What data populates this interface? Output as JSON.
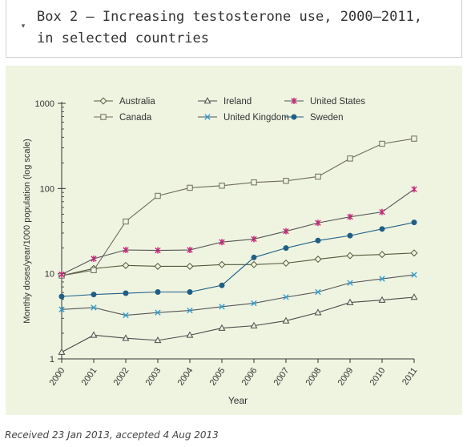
{
  "box": {
    "toggle_icon": "▾",
    "title": "Box 2 – Increasing testosterone use, 2000–2011, in selected countries"
  },
  "caption": "Received 23 Jan 2013, accepted 4 Aug 2013",
  "chart_data": {
    "type": "line",
    "xlabel": "Year",
    "ylabel": "Monthly doses/year/1000 population (log scale)",
    "y_scale": "log",
    "ylim": [
      1,
      1000
    ],
    "y_ticks": [
      1,
      10,
      100,
      1000
    ],
    "y_tick_labels": [
      "1",
      "10",
      "100",
      "1000"
    ],
    "categories": [
      "2000",
      "2001",
      "2002",
      "2003",
      "2004",
      "2005",
      "2006",
      "2007",
      "2008",
      "2009",
      "2010",
      "2011"
    ],
    "grid": false,
    "legend_position": "top",
    "colors": {
      "background": "#eff4e1",
      "australia": "#4f5a38",
      "canada": "#6e6a5e",
      "ireland": "#4a4a4a",
      "united_kingdom": "#2e9fd8",
      "united_states": "#c8227a",
      "sweden": "#1f5f85"
    },
    "series": [
      {
        "name": "Australia",
        "marker": "diamond",
        "color": "#4f5a38",
        "values": [
          9.5,
          11.5,
          12.5,
          12.2,
          12.2,
          12.8,
          12.8,
          13.3,
          14.8,
          16.3,
          16.8,
          17.5
        ]
      },
      {
        "name": "Canada",
        "marker": "square",
        "color": "#6e6a5e",
        "values": [
          9.5,
          11.0,
          41,
          82,
          102,
          108,
          118,
          123,
          138,
          225,
          335,
          385
        ]
      },
      {
        "name": "Ireland",
        "marker": "triangle",
        "color": "#4a4a4a",
        "values": [
          1.2,
          1.9,
          1.75,
          1.65,
          1.9,
          2.3,
          2.45,
          2.8,
          3.5,
          4.6,
          4.9,
          5.3
        ]
      },
      {
        "name": "United Kingdom",
        "marker": "x",
        "color": "#2e9fd8",
        "values": [
          3.8,
          4.0,
          3.25,
          3.5,
          3.7,
          4.1,
          4.5,
          5.3,
          6.1,
          7.8,
          8.7,
          9.7
        ]
      },
      {
        "name": "United States",
        "marker": "star",
        "color": "#c8227a",
        "values": [
          9.8,
          15.0,
          19.0,
          18.8,
          19.0,
          23.5,
          25.5,
          31.5,
          39.5,
          46.5,
          53,
          98
        ]
      },
      {
        "name": "Sweden",
        "marker": "circle",
        "color": "#1f5f85",
        "values": [
          5.4,
          5.7,
          5.9,
          6.1,
          6.1,
          7.3,
          15.5,
          20,
          24.5,
          28,
          33.5,
          40
        ]
      }
    ],
    "legend_order": [
      "Australia",
      "Ireland",
      "United States",
      "Canada",
      "United Kingdom",
      "Sweden"
    ]
  }
}
